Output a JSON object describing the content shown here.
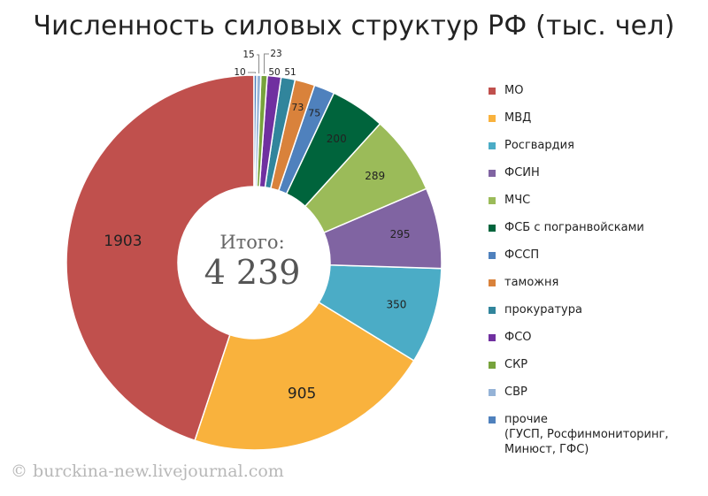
{
  "chart_data": {
    "type": "pie",
    "title": "Численность силовых структур РФ (тыс. чел)",
    "center": {
      "label": "Итого:",
      "value": "4 239"
    },
    "slices": [
      {
        "name": "МО",
        "value": 1903,
        "label": "1903",
        "color": "#c0504d"
      },
      {
        "name": "МВД",
        "value": 905,
        "label": "905",
        "color": "#f9b23d"
      },
      {
        "name": "Росгвардия",
        "value": 350,
        "label": "350",
        "color": "#4bacc6"
      },
      {
        "name": "ФСИН",
        "value": 295,
        "label": "295",
        "color": "#8064a2"
      },
      {
        "name": "МЧС",
        "value": 289,
        "label": "289",
        "color": "#9bbb59"
      },
      {
        "name": "ФСБ с погранвойсками",
        "value": 200,
        "label": "200",
        "color": "#00643c"
      },
      {
        "name": "ФССП",
        "value": 75,
        "label": "75",
        "color": "#4f81bd"
      },
      {
        "name": "таможня",
        "value": 73,
        "label": "73",
        "color": "#d9823b"
      },
      {
        "name": "прокуратура",
        "value": 51,
        "label": "51",
        "color": "#31859c"
      },
      {
        "name": "ФСО",
        "value": 50,
        "label": "50",
        "color": "#7030a0"
      },
      {
        "name": "СКР",
        "value": 23,
        "label": "23",
        "color": "#77a33c"
      },
      {
        "name": "СВР",
        "value": 15,
        "label": "15",
        "color": "#95b3d7"
      },
      {
        "name": "прочие",
        "value": 10,
        "label": "10",
        "color": "#4f81bd"
      }
    ],
    "legend": [
      {
        "text": "МО"
      },
      {
        "text": "МВД"
      },
      {
        "text": "Росгвардия"
      },
      {
        "text": "ФСИН"
      },
      {
        "text": "МЧС"
      },
      {
        "text": "ФСБ с погранвойсками"
      },
      {
        "text": "ФССП"
      },
      {
        "text": "таможня"
      },
      {
        "text": "прокуратура"
      },
      {
        "text": "ФСО"
      },
      {
        "text": "СКР"
      },
      {
        "text": "СВР"
      },
      {
        "text": "прочие",
        "note": [
          "(ГУСП, Росфинмониторинг,",
          "Минюст, ГФС)"
        ]
      }
    ],
    "legend_position": "right"
  },
  "watermark": "© burckina-new.livejournal.com"
}
